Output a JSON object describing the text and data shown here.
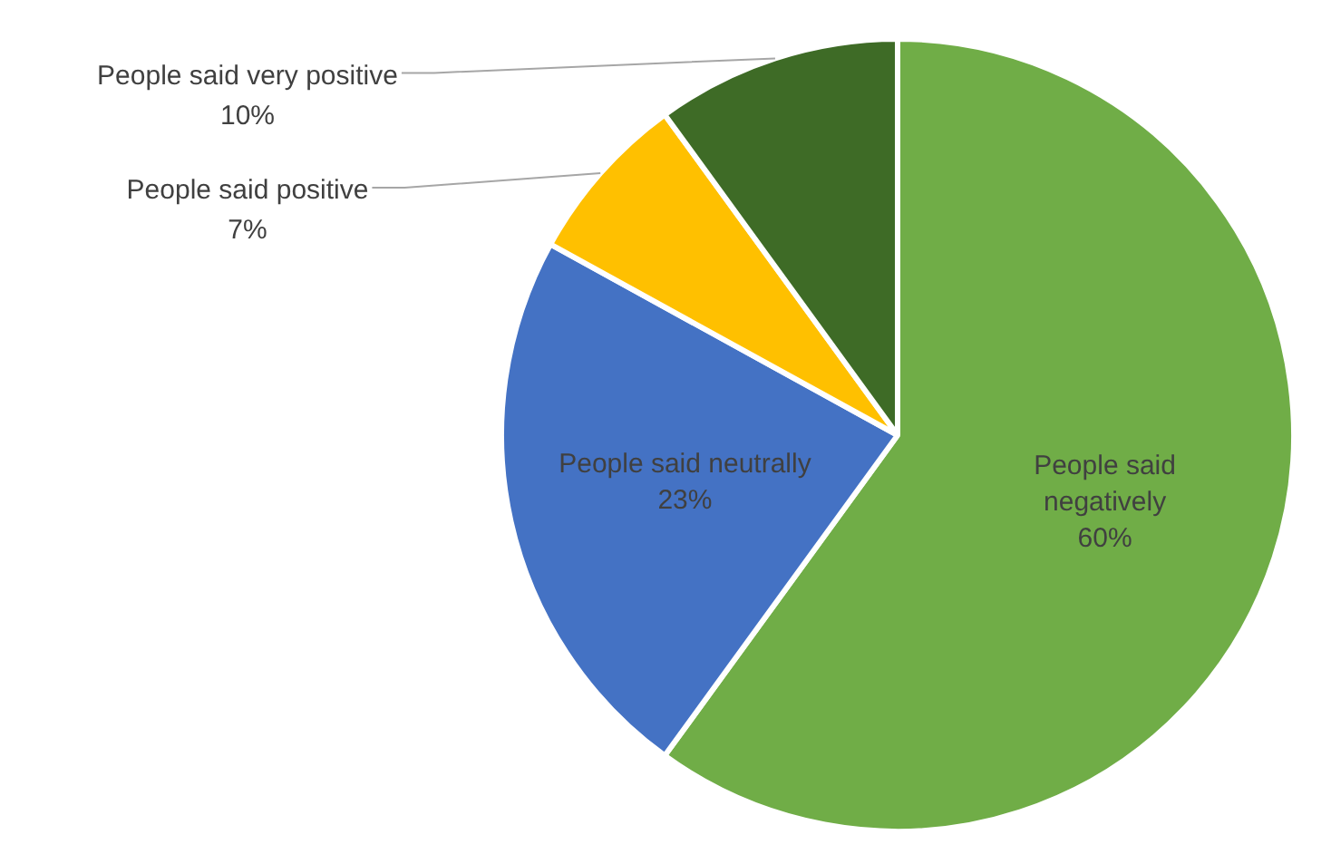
{
  "chart_data": {
    "type": "pie",
    "categories": [
      "People said negatively",
      "People said neutrally",
      "People said positive",
      "People said very positive"
    ],
    "values": [
      60,
      23,
      7,
      10
    ],
    "colors": [
      "#70ad47",
      "#4472c4",
      "#ffc000",
      "#3e6b26"
    ],
    "value_labels": [
      "60%",
      "23%",
      "7%",
      "10%"
    ],
    "legend": false
  }
}
